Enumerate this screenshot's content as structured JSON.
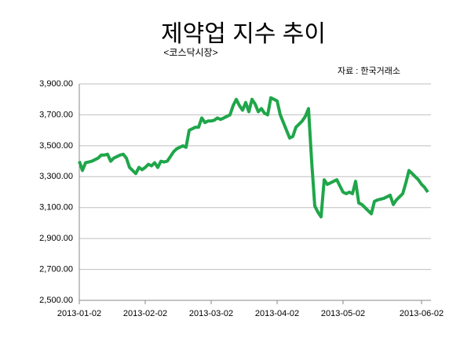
{
  "chart_data": {
    "type": "line",
    "title": "제약업 지수 추이",
    "subtitle": "<코스닥시장>",
    "source": "자료 : 한국거래소",
    "categories": [
      "2013-01-02",
      null,
      null,
      null,
      null,
      null,
      null,
      null,
      null,
      null,
      null,
      null,
      null,
      null,
      null,
      null,
      null,
      null,
      null,
      null,
      null,
      "2013-02-02",
      null,
      null,
      null,
      null,
      null,
      null,
      null,
      null,
      null,
      null,
      null,
      null,
      null,
      null,
      null,
      null,
      null,
      null,
      null,
      null,
      "2013-03-02",
      null,
      null,
      null,
      null,
      null,
      null,
      null,
      null,
      null,
      null,
      null,
      null,
      null,
      null,
      null,
      null,
      null,
      null,
      null,
      null,
      "2013-04-02",
      null,
      null,
      null,
      null,
      null,
      null,
      null,
      null,
      null,
      null,
      null,
      null,
      null,
      null,
      null,
      null,
      null,
      null,
      null,
      null,
      "2013-05-02",
      null,
      null,
      null,
      null,
      null,
      null,
      null,
      null,
      null,
      null,
      null,
      null,
      null,
      null,
      null,
      null,
      null,
      null,
      null,
      null,
      null,
      null,
      null,
      null,
      "2013-06-02",
      null,
      null
    ],
    "series": [
      {
        "name": "제약업",
        "color": "#1fa64a",
        "values": [
          3400,
          3340,
          3390,
          3395,
          3400,
          3410,
          3420,
          3440,
          3440,
          3445,
          3400,
          3420,
          3430,
          3440,
          3445,
          3420,
          3360,
          3340,
          3320,
          3360,
          3345,
          3360,
          3380,
          3370,
          3390,
          3360,
          3400,
          3395,
          3400,
          3430,
          3460,
          3480,
          3490,
          3500,
          3490,
          3600,
          3610,
          3620,
          3620,
          3680,
          3650,
          3660,
          3660,
          3665,
          3680,
          3670,
          3680,
          3690,
          3700,
          3760,
          3800,
          3760,
          3730,
          3780,
          3720,
          3800,
          3770,
          3720,
          3740,
          3710,
          3700,
          3810,
          3800,
          3790,
          3700,
          3650,
          3600,
          3550,
          3560,
          3620,
          3640,
          3660,
          3690,
          3740,
          3400,
          3110,
          3070,
          3040,
          3280,
          3250,
          3260,
          3270,
          3280,
          3240,
          3200,
          3190,
          3200,
          3190,
          3270,
          3130,
          3120,
          3100,
          3080,
          3060,
          3140,
          3150,
          3155,
          3160,
          3170,
          3180,
          3120,
          3150,
          3170,
          3190,
          3260,
          3340,
          3320,
          3300,
          3280,
          3250,
          3230,
          3200
        ]
      }
    ],
    "ylim": [
      2500,
      3900
    ],
    "yticks": [
      {
        "value": 2500,
        "label": "2,500.00"
      },
      {
        "value": 2700,
        "label": "2,700.00"
      },
      {
        "value": 2900,
        "label": "2,900.00"
      },
      {
        "value": 3100,
        "label": "3,100.00"
      },
      {
        "value": 3300,
        "label": "3,300.00"
      },
      {
        "value": 3500,
        "label": "3,500.00"
      },
      {
        "value": 3700,
        "label": "3,700.00"
      },
      {
        "value": 3900,
        "label": "3,900.00"
      }
    ],
    "grid": true
  }
}
